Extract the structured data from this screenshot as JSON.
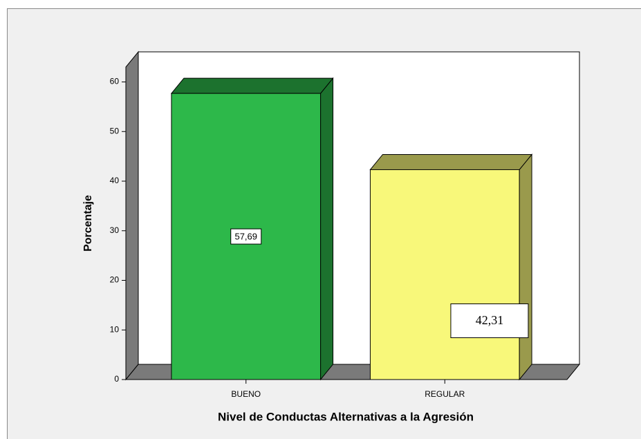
{
  "chart_data": {
    "type": "bar3d",
    "x_label": "Nivel de Conductas Alternativas a la Agresión",
    "y_label": "Porcentaje",
    "categories": [
      "BUENO",
      "REGULAR"
    ],
    "values": [
      57.69,
      42.31
    ],
    "value_labels": [
      "57,69",
      "42,31"
    ],
    "colors": [
      "#2db84a",
      "#f8f87a"
    ],
    "ylim": [
      0,
      63
    ],
    "yticks": [
      0,
      10,
      20,
      30,
      40,
      50,
      60
    ]
  }
}
